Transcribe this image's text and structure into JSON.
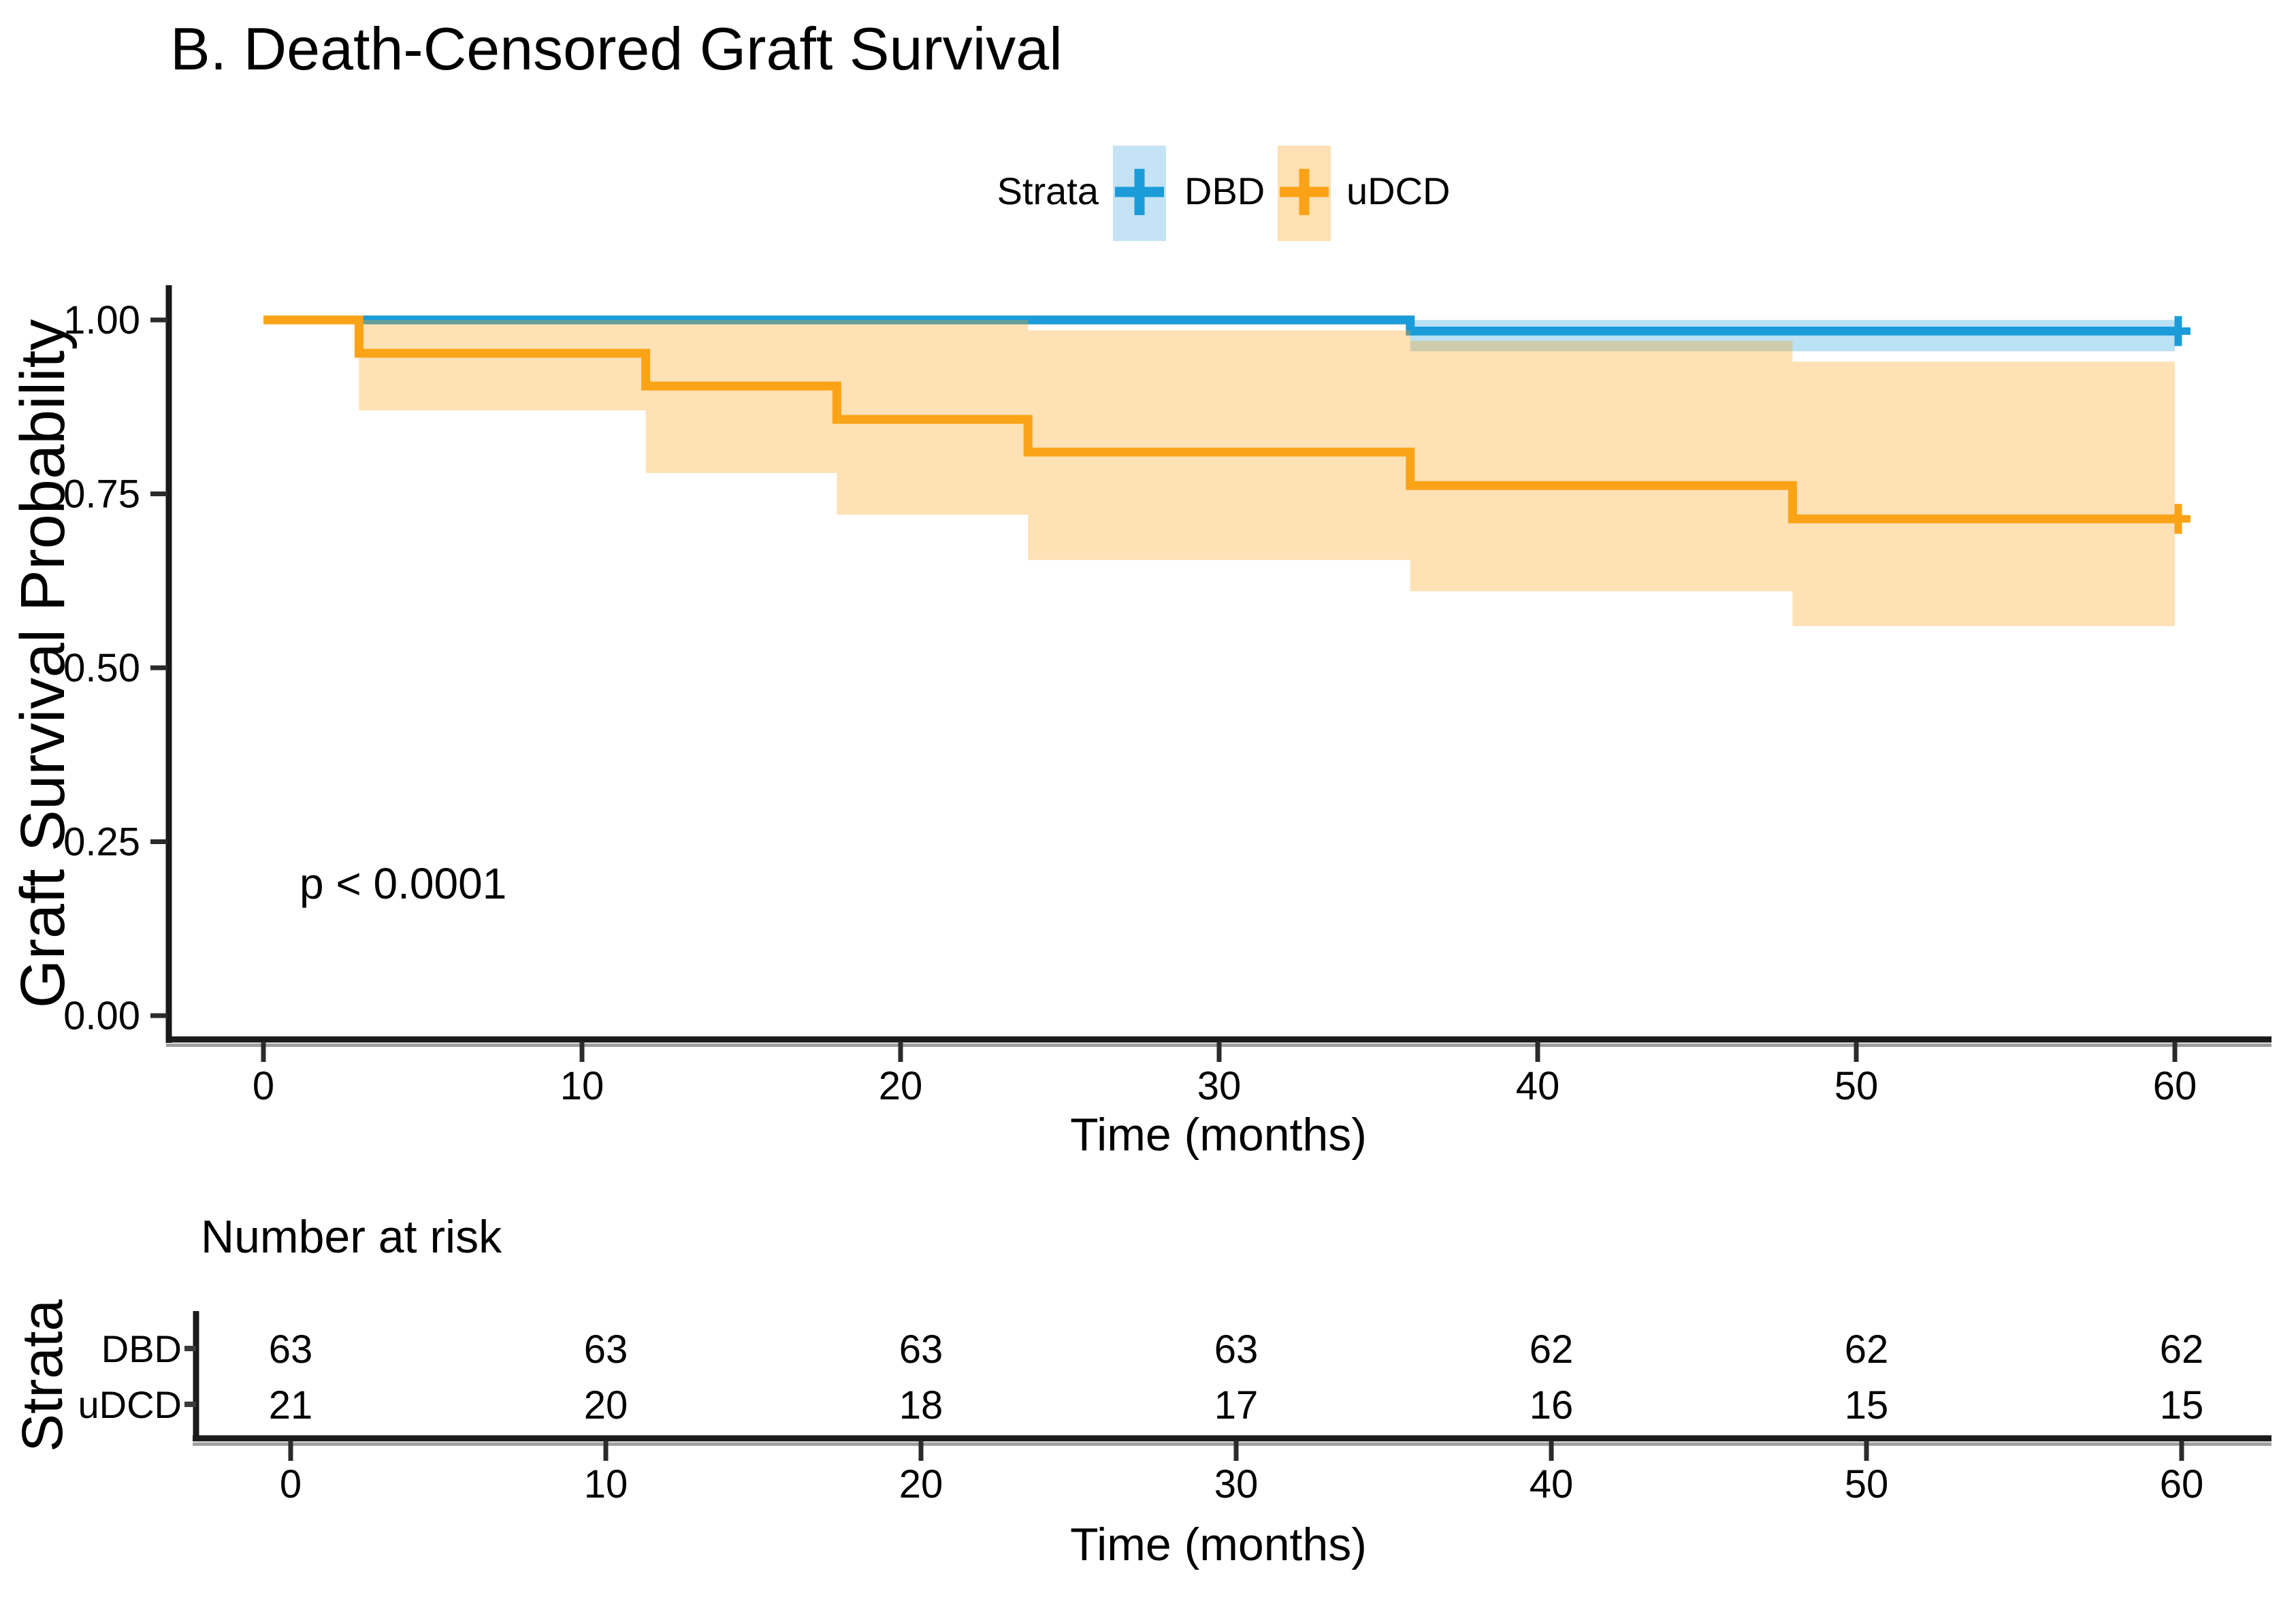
{
  "legend": {
    "label": "Strata"
  },
  "chart_data": {
    "type": "line",
    "subtype": "kaplan_meier_step",
    "title": "B. Death-Censored Graft Survival",
    "xlabel": "Time (months)",
    "ylabel": "Graft Survival Probability",
    "xlim": [
      0,
      60
    ],
    "ylim": [
      0,
      1.0
    ],
    "x_ticks": [
      0,
      10,
      20,
      30,
      40,
      50,
      60
    ],
    "y_tick_values": [
      1.0,
      0.75,
      0.5,
      0.25,
      0.0
    ],
    "y_tick_labels": [
      "1.00",
      "0.75",
      "0.50",
      "0.25",
      "0.00"
    ],
    "grid": false,
    "legend_position": "top",
    "annotations": [
      {
        "text": "p < 0.0001",
        "x": 1.1,
        "y": 0.19
      }
    ],
    "series": [
      {
        "name": "DBD",
        "color": "#1B9CD9",
        "band_fill": "rgba(27,156,217,0.30)",
        "legend_fill": "#C4E3F4",
        "steps": [
          {
            "t": 0,
            "s": 1.0
          },
          {
            "t": 36,
            "s": 0.984
          }
        ],
        "end_time": 60,
        "censors": [
          {
            "t": 60,
            "s": 0.984
          }
        ],
        "ci_band": [
          {
            "t0": 0,
            "t1": 36,
            "lo": 1.0,
            "hi": 1.0
          },
          {
            "t0": 36,
            "t1": 60,
            "lo": 0.955,
            "hi": 1.0
          }
        ]
      },
      {
        "name": "uDCD",
        "color": "#FBA317",
        "band_fill": "rgba(251,163,23,0.32)",
        "legend_fill": "#FDE0B3",
        "steps": [
          {
            "t": 0,
            "s": 1.0
          },
          {
            "t": 3,
            "s": 0.952
          },
          {
            "t": 12,
            "s": 0.905
          },
          {
            "t": 18,
            "s": 0.857
          },
          {
            "t": 24,
            "s": 0.81
          },
          {
            "t": 36,
            "s": 0.762
          },
          {
            "t": 48,
            "s": 0.714
          }
        ],
        "end_time": 60,
        "censors": [
          {
            "t": 60,
            "s": 0.714
          }
        ],
        "ci_band": [
          {
            "t0": 3,
            "t1": 12,
            "lo": 0.87,
            "hi": 1.0
          },
          {
            "t0": 12,
            "t1": 18,
            "lo": 0.78,
            "hi": 1.0
          },
          {
            "t0": 18,
            "t1": 24,
            "lo": 0.72,
            "hi": 1.0
          },
          {
            "t0": 24,
            "t1": 36,
            "lo": 0.655,
            "hi": 0.985
          },
          {
            "t0": 36,
            "t1": 48,
            "lo": 0.61,
            "hi": 0.97
          },
          {
            "t0": 48,
            "t1": 60,
            "lo": 0.56,
            "hi": 0.94
          }
        ]
      }
    ]
  },
  "risk_table": {
    "title": "Number at risk",
    "axis_label": "Strata",
    "x_label": "Time (months)",
    "x_ticks": [
      0,
      10,
      20,
      30,
      40,
      50,
      60
    ],
    "rows": [
      {
        "label": "DBD",
        "color": "#1B9CD9",
        "values": [
          63,
          63,
          63,
          63,
          62,
          62,
          62
        ]
      },
      {
        "label": "uDCD",
        "color": "#FBA317",
        "values": [
          21,
          20,
          18,
          17,
          16,
          15,
          15
        ]
      }
    ]
  }
}
